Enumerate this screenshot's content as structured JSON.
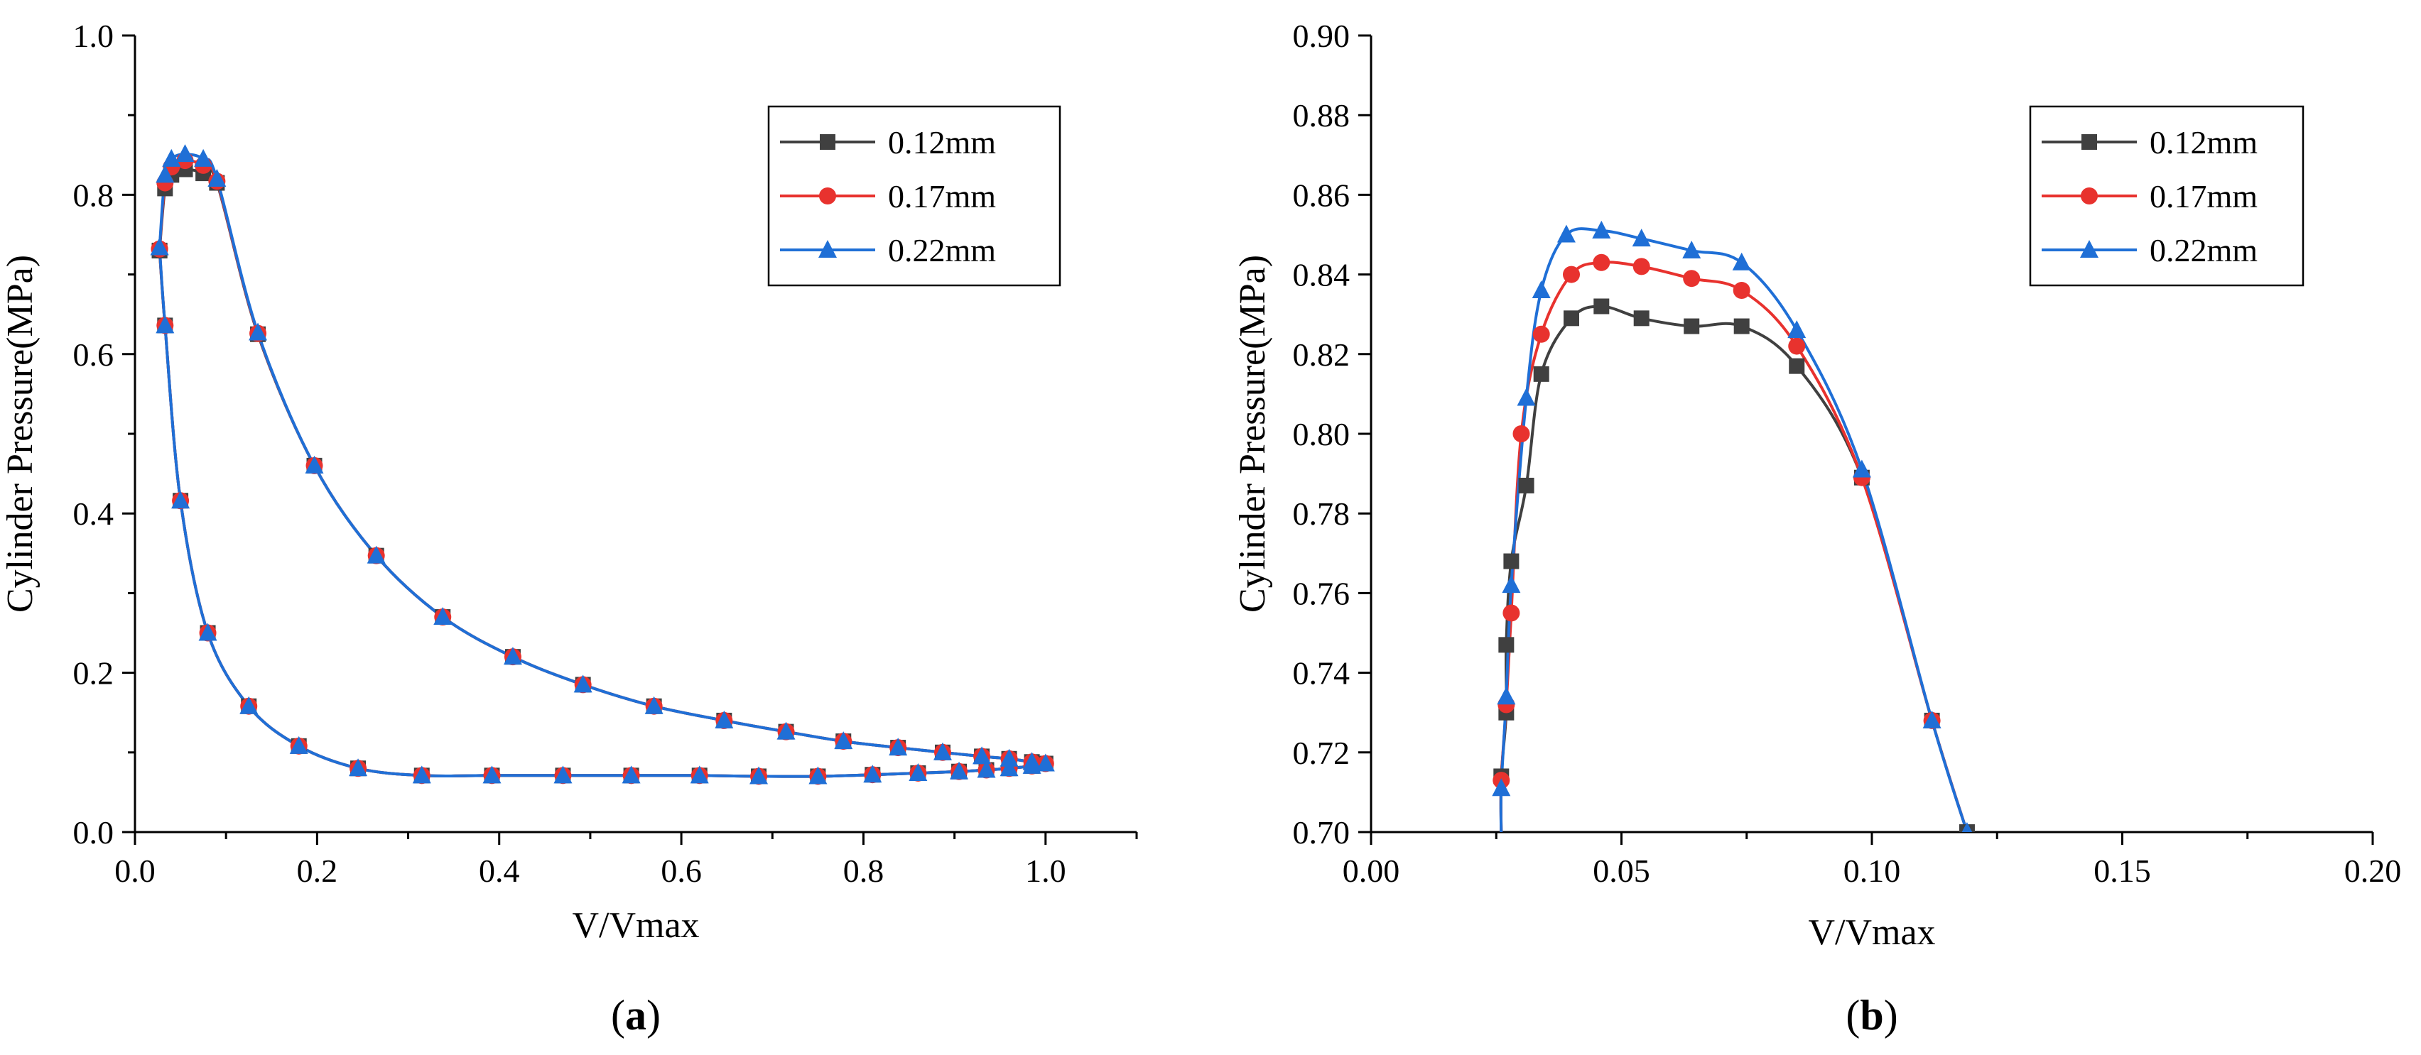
{
  "chart_data": [
    {
      "type": "line",
      "panel_label": "a",
      "xlabel": "V/Vmax",
      "ylabel": "Cylinder Pressure(MPa)",
      "xlim": [
        0.0,
        1.1
      ],
      "ylim": [
        0.0,
        1.0
      ],
      "xticks": [
        0.0,
        0.2,
        0.4,
        0.6,
        0.8,
        1.0
      ],
      "xtick_labels": [
        "0.0",
        "0.2",
        "0.4",
        "0.6",
        "0.8",
        "1.0"
      ],
      "yticks": [
        0.0,
        0.2,
        0.4,
        0.6,
        0.8,
        1.0
      ],
      "ytick_labels": [
        "0.0",
        "0.2",
        "0.4",
        "0.6",
        "0.8",
        "1.0"
      ],
      "legend_position": "top-right",
      "series": [
        {
          "name": "0.12mm",
          "color": "#404040",
          "marker": "square",
          "x": [
            0.027,
            0.033,
            0.04,
            0.055,
            0.075,
            0.09,
            0.135,
            0.197,
            0.265,
            0.338,
            0.415,
            0.492,
            0.57,
            0.647,
            0.715,
            0.778,
            0.838,
            0.887,
            0.93,
            0.96,
            0.985,
            1.0,
            0.985,
            0.96,
            0.935,
            0.905,
            0.86,
            0.81,
            0.75,
            0.685,
            0.62,
            0.545,
            0.47,
            0.392,
            0.315,
            0.245,
            0.18,
            0.125,
            0.08,
            0.05,
            0.033,
            0.027
          ],
          "y": [
            0.73,
            0.808,
            0.825,
            0.832,
            0.827,
            0.815,
            0.625,
            0.46,
            0.347,
            0.27,
            0.22,
            0.185,
            0.158,
            0.14,
            0.126,
            0.114,
            0.106,
            0.1,
            0.095,
            0.092,
            0.088,
            0.086,
            0.083,
            0.08,
            0.078,
            0.076,
            0.074,
            0.072,
            0.07,
            0.07,
            0.071,
            0.071,
            0.071,
            0.071,
            0.071,
            0.08,
            0.108,
            0.158,
            0.25,
            0.416,
            0.636,
            0.73
          ]
        },
        {
          "name": "0.17mm",
          "color": "#e8322e",
          "marker": "circle",
          "x": [
            0.027,
            0.033,
            0.04,
            0.055,
            0.075,
            0.09,
            0.135,
            0.197,
            0.265,
            0.338,
            0.415,
            0.492,
            0.57,
            0.647,
            0.715,
            0.778,
            0.838,
            0.887,
            0.93,
            0.96,
            0.985,
            1.0,
            0.985,
            0.96,
            0.935,
            0.905,
            0.86,
            0.81,
            0.75,
            0.685,
            0.62,
            0.545,
            0.47,
            0.392,
            0.315,
            0.245,
            0.18,
            0.125,
            0.08,
            0.05,
            0.033,
            0.027
          ],
          "y": [
            0.732,
            0.815,
            0.835,
            0.843,
            0.837,
            0.817,
            0.626,
            0.46,
            0.347,
            0.27,
            0.22,
            0.185,
            0.158,
            0.14,
            0.126,
            0.114,
            0.106,
            0.1,
            0.095,
            0.092,
            0.088,
            0.086,
            0.083,
            0.08,
            0.078,
            0.076,
            0.074,
            0.072,
            0.07,
            0.07,
            0.071,
            0.071,
            0.071,
            0.071,
            0.071,
            0.08,
            0.108,
            0.158,
            0.25,
            0.416,
            0.636,
            0.732
          ]
        },
        {
          "name": "0.22mm",
          "color": "#1f6fd6",
          "marker": "triangle",
          "x": [
            0.027,
            0.033,
            0.04,
            0.055,
            0.075,
            0.09,
            0.135,
            0.197,
            0.265,
            0.338,
            0.415,
            0.492,
            0.57,
            0.647,
            0.715,
            0.778,
            0.838,
            0.887,
            0.93,
            0.96,
            0.985,
            1.0,
            0.985,
            0.96,
            0.935,
            0.905,
            0.86,
            0.81,
            0.75,
            0.685,
            0.62,
            0.545,
            0.47,
            0.392,
            0.315,
            0.245,
            0.18,
            0.125,
            0.08,
            0.05,
            0.033,
            0.027
          ],
          "y": [
            0.734,
            0.825,
            0.845,
            0.851,
            0.845,
            0.82,
            0.627,
            0.46,
            0.347,
            0.27,
            0.22,
            0.185,
            0.158,
            0.14,
            0.126,
            0.114,
            0.106,
            0.1,
            0.095,
            0.092,
            0.088,
            0.086,
            0.083,
            0.08,
            0.078,
            0.076,
            0.074,
            0.072,
            0.07,
            0.07,
            0.071,
            0.071,
            0.071,
            0.071,
            0.071,
            0.08,
            0.108,
            0.158,
            0.25,
            0.416,
            0.636,
            0.734
          ]
        }
      ]
    },
    {
      "type": "line",
      "panel_label": "b",
      "xlabel": "V/Vmax",
      "ylabel": "Cylinder Pressure(MPa)",
      "xlim": [
        0.0,
        0.2
      ],
      "ylim": [
        0.7,
        0.9
      ],
      "xticks": [
        0.0,
        0.05,
        0.1,
        0.15,
        0.2
      ],
      "xtick_labels": [
        "0.00",
        "0.05",
        "0.10",
        "0.15",
        "0.20"
      ],
      "yticks": [
        0.7,
        0.72,
        0.74,
        0.76,
        0.78,
        0.8,
        0.82,
        0.84,
        0.86,
        0.88,
        0.9
      ],
      "ytick_labels": [
        "0.70",
        "0.72",
        "0.74",
        "0.76",
        "0.78",
        "0.80",
        "0.82",
        "0.84",
        "0.86",
        "0.88",
        "0.90"
      ],
      "legend_position": "top-right",
      "series": [
        {
          "name": "0.12mm",
          "color": "#404040",
          "marker": "square",
          "x": [
            0.026,
            0.026,
            0.027,
            0.027,
            0.028,
            0.031,
            0.034,
            0.04,
            0.046,
            0.054,
            0.064,
            0.074,
            0.085,
            0.098,
            0.112,
            0.119
          ],
          "y": [
            0.699,
            0.714,
            0.73,
            0.747,
            0.768,
            0.787,
            0.815,
            0.829,
            0.832,
            0.829,
            0.827,
            0.827,
            0.817,
            0.789,
            0.728,
            0.7
          ]
        },
        {
          "name": "0.17mm",
          "color": "#e8322e",
          "marker": "circle",
          "x": [
            0.026,
            0.026,
            0.027,
            0.028,
            0.03,
            0.034,
            0.04,
            0.046,
            0.054,
            0.064,
            0.074,
            0.085,
            0.098,
            0.112,
            0.119
          ],
          "y": [
            0.699,
            0.713,
            0.732,
            0.755,
            0.8,
            0.825,
            0.84,
            0.843,
            0.842,
            0.839,
            0.836,
            0.822,
            0.789,
            0.728,
            0.7
          ],
          "markers_x": [
            0.026,
            0.027,
            0.028,
            0.03,
            0.034,
            0.04,
            0.046,
            0.054,
            0.064,
            0.074,
            0.085,
            0.098,
            0.112
          ],
          "markers_y": [
            0.713,
            0.732,
            0.755,
            0.8,
            0.825,
            0.84,
            0.843,
            0.842,
            0.839,
            0.836,
            0.822,
            0.789,
            0.728
          ]
        },
        {
          "name": "0.22mm",
          "color": "#1f6fd6",
          "marker": "triangle",
          "x": [
            0.026,
            0.026,
            0.027,
            0.028,
            0.031,
            0.034,
            0.039,
            0.046,
            0.054,
            0.064,
            0.074,
            0.085,
            0.098,
            0.112,
            0.119
          ],
          "y": [
            0.699,
            0.711,
            0.734,
            0.762,
            0.809,
            0.836,
            0.85,
            0.851,
            0.849,
            0.846,
            0.843,
            0.826,
            0.791,
            0.728,
            0.7
          ]
        }
      ]
    }
  ]
}
